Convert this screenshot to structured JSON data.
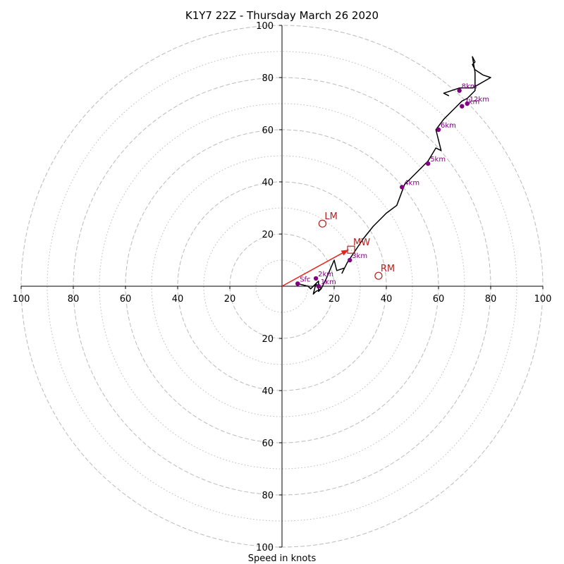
{
  "chart_data": {
    "type": "line",
    "title": "K1Y7 22Z - Thursday March 26 2020",
    "xlabel": "Speed in knots",
    "ylabel": "",
    "xlim": [
      -100,
      100
    ],
    "ylim": [
      -100,
      100
    ],
    "tick_labels": [
      "100",
      "80",
      "60",
      "40",
      "20",
      "20",
      "40",
      "60",
      "80",
      "100"
    ],
    "tick_values": [
      -100,
      -80,
      -60,
      -40,
      -20,
      20,
      40,
      60,
      80,
      100
    ],
    "rings": [
      10,
      20,
      30,
      40,
      50,
      60,
      70,
      80,
      90,
      100
    ],
    "grid": true,
    "hodograph": {
      "x": [
        6,
        10,
        11,
        13,
        14,
        14,
        15,
        13,
        12,
        13,
        14,
        14,
        15,
        17,
        20,
        21,
        24,
        23,
        25,
        27,
        29,
        31,
        35,
        40,
        44,
        47,
        50,
        53,
        56,
        59,
        61,
        59,
        62,
        66,
        69,
        71,
        74,
        74,
        73,
        74,
        73,
        74,
        77,
        80,
        73,
        68,
        62,
        64
      ],
      "y": [
        1,
        0,
        -1,
        1,
        2,
        1,
        -1,
        -2,
        -3,
        1,
        -1,
        -2,
        -1,
        3,
        10,
        6,
        7,
        5,
        9,
        12,
        15,
        18,
        23,
        28,
        31,
        39,
        42,
        45,
        48,
        53,
        52,
        60,
        64,
        68,
        71,
        72,
        75,
        82,
        88,
        86,
        85,
        83,
        81,
        80,
        76,
        76,
        74,
        73
      ]
    },
    "height_markers": [
      {
        "label": "Sfc",
        "x": 6,
        "y": 1
      },
      {
        "label": "1km",
        "x": 14,
        "y": 0
      },
      {
        "label": "2km",
        "x": 13,
        "y": 3
      },
      {
        "label": "3km",
        "x": 26,
        "y": 10
      },
      {
        "label": "4km",
        "x": 46,
        "y": 38
      },
      {
        "label": "5km",
        "x": 56,
        "y": 47
      },
      {
        "label": "6km",
        "x": 60,
        "y": 60
      },
      {
        "label": "7km",
        "x": 69,
        "y": 69
      },
      {
        "label": "8km",
        "x": 68,
        "y": 75
      },
      {
        "label": "12km",
        "x": 71,
        "y": 70
      }
    ],
    "storm_motions": [
      {
        "label": "LM",
        "x": 15.5,
        "y": 24,
        "marker": "circle"
      },
      {
        "label": "MW",
        "x": 26.5,
        "y": 14,
        "marker": "square"
      },
      {
        "label": "RM",
        "x": 37,
        "y": 4,
        "marker": "circle"
      }
    ],
    "shear_vector": {
      "x0": 0,
      "y0": 0,
      "x1": 25.5,
      "y1": 14
    }
  },
  "colors": {
    "hodograph": "#000000",
    "height_marker": "#800080",
    "storm_motion": "#b22222",
    "shear_vector": "#e8231c",
    "grid": "#bbbbbb",
    "axis": "#000000"
  }
}
